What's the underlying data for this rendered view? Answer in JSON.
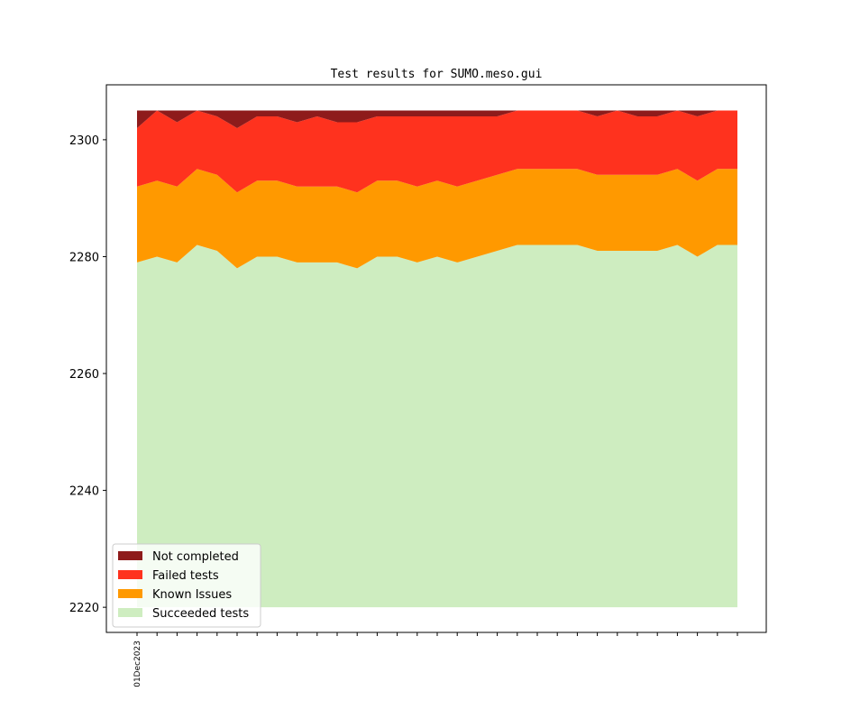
{
  "chart_data": {
    "type": "area",
    "stacked": true,
    "title": "Test results for SUMO.meso.gui",
    "categories": [
      "01Dec2023",
      null,
      null,
      null,
      null,
      null,
      null,
      null,
      null,
      null,
      null,
      null,
      null,
      null,
      null,
      null,
      null,
      null,
      null,
      null,
      null,
      null,
      null,
      null,
      null,
      null,
      null,
      null,
      null,
      null,
      null
    ],
    "series": [
      {
        "name": "Not completed",
        "color": "#8e1b1b",
        "values": [
          3,
          0,
          2,
          0,
          1,
          3,
          1,
          1,
          2,
          1,
          2,
          2,
          1,
          1,
          1,
          1,
          1,
          1,
          1,
          0,
          0,
          0,
          0,
          1,
          0,
          1,
          1,
          0,
          1,
          0,
          0
        ]
      },
      {
        "name": "Failed tests",
        "color": "#ff321e",
        "values": [
          10,
          12,
          11,
          10,
          10,
          11,
          11,
          11,
          11,
          12,
          11,
          12,
          11,
          11,
          12,
          11,
          12,
          11,
          10,
          10,
          10,
          10,
          10,
          10,
          11,
          10,
          10,
          10,
          11,
          10,
          10
        ]
      },
      {
        "name": "Known Issues",
        "color": "#ff9900",
        "values": [
          13,
          13,
          13,
          13,
          13,
          13,
          13,
          13,
          13,
          13,
          13,
          13,
          13,
          13,
          13,
          13,
          13,
          13,
          13,
          13,
          13,
          13,
          13,
          13,
          13,
          13,
          13,
          13,
          13,
          13,
          13
        ]
      },
      {
        "name": "Succeeded tests",
        "color": "#ceedc0",
        "values": [
          2279,
          2280,
          2279,
          2282,
          2281,
          2278,
          2280,
          2280,
          2279,
          2279,
          2279,
          2278,
          2280,
          2280,
          2279,
          2280,
          2279,
          2280,
          2281,
          2282,
          2282,
          2282,
          2282,
          2281,
          2281,
          2281,
          2281,
          2282,
          2280,
          2282,
          2282
        ]
      }
    ],
    "ylim": [
      2215.7,
      2309.4
    ],
    "yticks": [
      2220,
      2240,
      2260,
      2280,
      2300
    ],
    "legend": "lower left"
  }
}
